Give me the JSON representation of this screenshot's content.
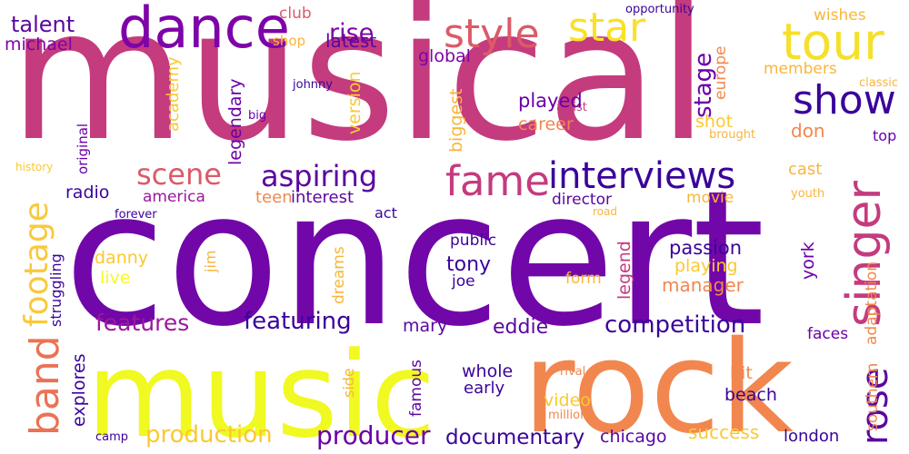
{
  "palette": {
    "deep_purple": "#5a07a0",
    "purple": "#7e10a4",
    "magenta": "#c43b7e",
    "rose": "#db5b68",
    "orange": "#f1874f",
    "amber": "#f9b53c",
    "yellow": "#f5f92a",
    "indigo": "#2d0a91"
  },
  "words": [
    {
      "text": "musical",
      "color": "#c43b7e"
    },
    {
      "text": "concert",
      "color": "#7107a8"
    },
    {
      "text": "music",
      "color": "#f0f921"
    },
    {
      "text": "rock",
      "color": "#f1874f"
    },
    {
      "text": "dance",
      "color": "#7e03a8"
    },
    {
      "text": "tour",
      "color": "#f5e02a"
    },
    {
      "text": "singer",
      "color": "#c43b7e"
    },
    {
      "text": "style",
      "color": "#db5b68"
    },
    {
      "text": "star",
      "color": "#f9e02a"
    },
    {
      "text": "show",
      "color": "#3a049a"
    },
    {
      "text": "fame",
      "color": "#c43b7e"
    },
    {
      "text": "interviews",
      "color": "#3a049a"
    },
    {
      "text": "aspiring",
      "color": "#5a07a0"
    },
    {
      "text": "scene",
      "color": "#db5b68"
    },
    {
      "text": "footage",
      "color": "#f9c93c"
    },
    {
      "text": "band",
      "color": "#eb7255"
    },
    {
      "text": "rose",
      "color": "#5a07a0"
    },
    {
      "text": "producer",
      "color": "#6a00a8"
    },
    {
      "text": "production",
      "color": "#f9c932"
    },
    {
      "text": "competition",
      "color": "#3a049a"
    },
    {
      "text": "documentary",
      "color": "#3a049a"
    },
    {
      "text": "featuring",
      "color": "#3a049a"
    },
    {
      "text": "features",
      "color": "#9c179e"
    },
    {
      "text": "talent",
      "color": "#5a07a0"
    },
    {
      "text": "rise",
      "color": "#7e03a8"
    },
    {
      "text": "michael",
      "color": "#7e03a8"
    },
    {
      "text": "latest",
      "color": "#5a07a0"
    },
    {
      "text": "club",
      "color": "#db5b68"
    },
    {
      "text": "shop",
      "color": "#f9b53c"
    },
    {
      "text": "global",
      "color": "#7e03a8"
    },
    {
      "text": "opportunity",
      "color": "#3a049a"
    },
    {
      "text": "wishes",
      "color": "#f9b53c"
    },
    {
      "text": "members",
      "color": "#f9b53c"
    },
    {
      "text": "classic",
      "color": "#f9b53c"
    },
    {
      "text": "europe",
      "color": "#f1874f"
    },
    {
      "text": "stage",
      "color": "#6a00a8"
    },
    {
      "text": "academy",
      "color": "#f9c932"
    },
    {
      "text": "legendary",
      "color": "#6a00a8"
    },
    {
      "text": "johnny",
      "color": "#3a049a"
    },
    {
      "text": "artist",
      "color": "#c43b7e"
    },
    {
      "text": "played",
      "color": "#6a00a8"
    },
    {
      "text": "career",
      "color": "#f1874f"
    },
    {
      "text": "shot",
      "color": "#f9c932"
    },
    {
      "text": "brought",
      "color": "#f9b53c"
    },
    {
      "text": "don",
      "color": "#f1874f"
    },
    {
      "text": "top",
      "color": "#6a00a8"
    },
    {
      "text": "big",
      "color": "#6a00a8"
    },
    {
      "text": "version",
      "color": "#f9c932"
    },
    {
      "text": "biggest",
      "color": "#f9b53c"
    },
    {
      "text": "original",
      "color": "#6a00a8"
    },
    {
      "text": "history",
      "color": "#f9c932"
    },
    {
      "text": "cast",
      "color": "#f9b53c"
    },
    {
      "text": "youth",
      "color": "#f9b53c"
    },
    {
      "text": "radio",
      "color": "#3a049a"
    },
    {
      "text": "america",
      "color": "#9c179e"
    },
    {
      "text": "teen",
      "color": "#f1874f"
    },
    {
      "text": "interest",
      "color": "#5a07a0"
    },
    {
      "text": "director",
      "color": "#5a07a0"
    },
    {
      "text": "movie",
      "color": "#f9b53c"
    },
    {
      "text": "act",
      "color": "#3a049a"
    },
    {
      "text": "forever",
      "color": "#3a049a"
    },
    {
      "text": "road",
      "color": "#f9b53c"
    },
    {
      "text": "struggling",
      "color": "#3a049a"
    },
    {
      "text": "danny",
      "color": "#f9c932"
    },
    {
      "text": "jim",
      "color": "#f9b53c"
    },
    {
      "text": "public",
      "color": "#3a049a"
    },
    {
      "text": "dreams",
      "color": "#f9b53c"
    },
    {
      "text": "tony",
      "color": "#3a049a"
    },
    {
      "text": "passion",
      "color": "#3a049a"
    },
    {
      "text": "playing",
      "color": "#f9c932"
    },
    {
      "text": "york",
      "color": "#6a00a8"
    },
    {
      "text": "adaptation",
      "color": "#f1874f"
    },
    {
      "text": "live",
      "color": "#f5f92a"
    },
    {
      "text": "legend",
      "color": "#c43b7e"
    },
    {
      "text": "joe",
      "color": "#3a049a"
    },
    {
      "text": "form",
      "color": "#f9b53c"
    },
    {
      "text": "manager",
      "color": "#f1874f"
    },
    {
      "text": "mary",
      "color": "#5a07a0"
    },
    {
      "text": "eddie",
      "color": "#5a07a0"
    },
    {
      "text": "explores",
      "color": "#3a049a"
    },
    {
      "text": "famous",
      "color": "#5a07a0"
    },
    {
      "text": "whole",
      "color": "#3a049a"
    },
    {
      "text": "early",
      "color": "#3a049a"
    },
    {
      "text": "side",
      "color": "#f9b53c"
    },
    {
      "text": "faces",
      "color": "#6a00a8"
    },
    {
      "text": "southern",
      "color": "#f1874f"
    },
    {
      "text": "hit",
      "color": "#f1874f"
    },
    {
      "text": "beach",
      "color": "#3a049a"
    },
    {
      "text": "video",
      "color": "#f9c932"
    },
    {
      "text": "rival",
      "color": "#f1874f"
    },
    {
      "text": "million",
      "color": "#f1874f"
    },
    {
      "text": "chicago",
      "color": "#5a07a0"
    },
    {
      "text": "success",
      "color": "#f9c932"
    },
    {
      "text": "london",
      "color": "#3a049a"
    },
    {
      "text": "camp",
      "color": "#3a049a"
    }
  ]
}
